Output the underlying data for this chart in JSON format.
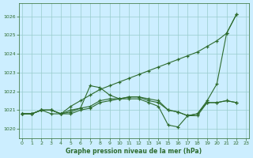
{
  "title": "Graphe pression niveau de la mer (hPa)",
  "bg_color": "#cceeff",
  "grid_color": "#99cccc",
  "line_color": "#2d6b2d",
  "xlim": [
    -0.3,
    23.3
  ],
  "ylim": [
    1019.5,
    1026.7
  ],
  "yticks": [
    1020,
    1021,
    1022,
    1023,
    1024,
    1025,
    1026
  ],
  "xticks": [
    0,
    1,
    2,
    3,
    4,
    5,
    6,
    7,
    8,
    9,
    10,
    11,
    12,
    13,
    14,
    15,
    16,
    17,
    18,
    19,
    20,
    21,
    22,
    23
  ],
  "s1_x": [
    0,
    1,
    2,
    3,
    4,
    5,
    6,
    7,
    8,
    9,
    10,
    11,
    12,
    13,
    14,
    15,
    16,
    17,
    18,
    19,
    20,
    21,
    22
  ],
  "s1_y": [
    1020.8,
    1020.8,
    1021.0,
    1021.0,
    1020.8,
    1021.2,
    1021.5,
    1021.8,
    1022.1,
    1022.3,
    1022.5,
    1022.7,
    1022.9,
    1023.1,
    1023.3,
    1023.5,
    1023.7,
    1023.9,
    1024.1,
    1024.4,
    1024.7,
    1025.1,
    1026.1
  ],
  "s2_x": [
    0,
    1,
    2,
    3,
    4,
    5,
    6,
    7,
    8,
    9,
    10,
    11,
    12,
    13,
    14,
    15,
    16,
    17,
    18,
    19,
    20,
    21,
    22
  ],
  "s2_y": [
    1020.8,
    1020.8,
    1021.0,
    1020.8,
    1020.8,
    1021.0,
    1021.1,
    1022.3,
    1022.2,
    1021.8,
    1021.6,
    1021.7,
    1021.7,
    1021.6,
    1021.5,
    1021.0,
    1020.9,
    1020.7,
    1020.8,
    1021.5,
    1022.4,
    1025.1,
    1026.1
  ],
  "s3_x": [
    0,
    1,
    2,
    3,
    4,
    5,
    6,
    7,
    8,
    9,
    10,
    11,
    12,
    13,
    14,
    15,
    16,
    17,
    18,
    19,
    20,
    21,
    22
  ],
  "s3_y": [
    1020.8,
    1020.8,
    1021.0,
    1021.0,
    1020.8,
    1020.9,
    1021.1,
    1021.2,
    1021.5,
    1021.6,
    1021.6,
    1021.7,
    1021.7,
    1021.5,
    1021.4,
    1021.0,
    1020.9,
    1020.7,
    1020.8,
    1021.4,
    1021.4,
    1021.5,
    1021.4
  ],
  "s4_x": [
    0,
    1,
    2,
    3,
    4,
    5,
    6,
    7,
    8,
    9,
    10,
    11,
    12,
    13,
    14,
    15,
    16,
    17,
    18,
    19,
    20,
    21,
    22
  ],
  "s4_y": [
    1020.8,
    1020.8,
    1021.0,
    1021.0,
    1020.8,
    1020.8,
    1021.0,
    1021.1,
    1021.4,
    1021.5,
    1021.6,
    1021.6,
    1021.6,
    1021.4,
    1021.2,
    1020.2,
    1020.1,
    1020.7,
    1020.7,
    1021.4,
    1021.4,
    1021.5,
    1021.4
  ]
}
